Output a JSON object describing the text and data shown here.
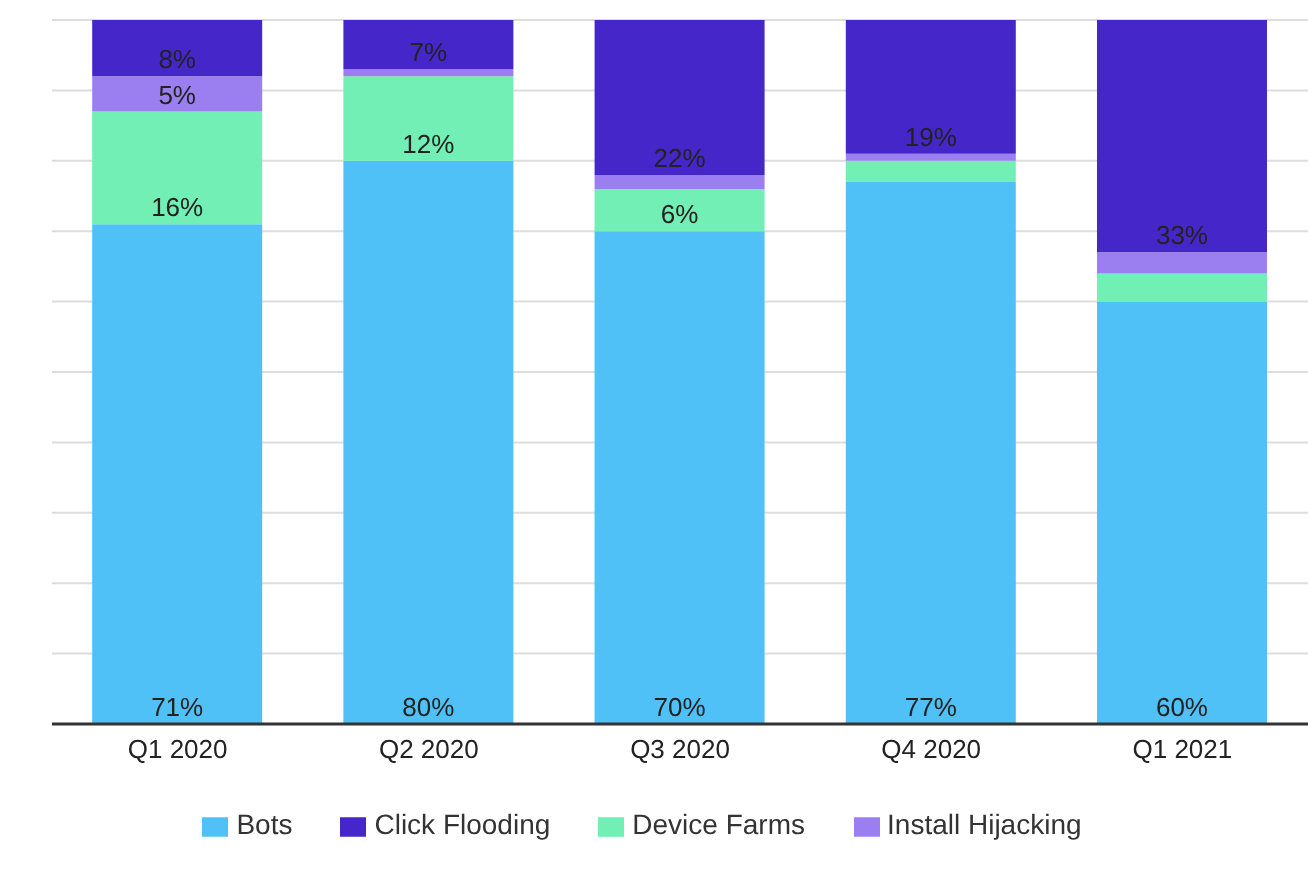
{
  "chart_data": {
    "type": "bar",
    "stacked": true,
    "categories": [
      "Q1 2020",
      "Q2 2020",
      "Q3 2020",
      "Q4 2020",
      "Q1 2021"
    ],
    "series": [
      {
        "name": "Bots",
        "color": "#4fc1f6",
        "values": [
          71,
          80,
          70,
          77,
          60
        ],
        "value_labels": [
          "71%",
          "80%",
          "70%",
          "77%",
          "60%"
        ]
      },
      {
        "name": "Device Farms",
        "color": "#72efb4",
        "values": [
          16,
          12,
          6,
          3,
          4
        ],
        "value_labels": [
          "16%",
          "12%",
          "6%",
          null,
          null
        ]
      },
      {
        "name": "Install Hijacking",
        "color": "#9b7ff0",
        "values": [
          5,
          1,
          2,
          1,
          3
        ],
        "value_labels": [
          "5%",
          null,
          null,
          null,
          null
        ]
      },
      {
        "name": "Click Flooding",
        "color": "#4527c9",
        "values": [
          8,
          7,
          22,
          19,
          33
        ],
        "value_labels": [
          "8%",
          "7%",
          "22%",
          "19%",
          "33%"
        ]
      }
    ],
    "ylim": [
      0,
      100
    ],
    "yticks": [
      {
        "value": 0,
        "label": null
      },
      {
        "value": 10,
        "label": null
      },
      {
        "value": 20,
        "label": null
      },
      {
        "value": 30,
        "label": null
      },
      {
        "value": 40,
        "label": null
      },
      {
        "value": 50,
        "label": null
      },
      {
        "value": 60,
        "label": null
      },
      {
        "value": 70,
        "label": null
      },
      {
        "value": 80,
        "label": null
      },
      {
        "value": 90,
        "label": null
      },
      {
        "value": 100,
        "label": null
      }
    ],
    "tick_labels": "x",
    "grid": "y",
    "legend": "bottom"
  }
}
